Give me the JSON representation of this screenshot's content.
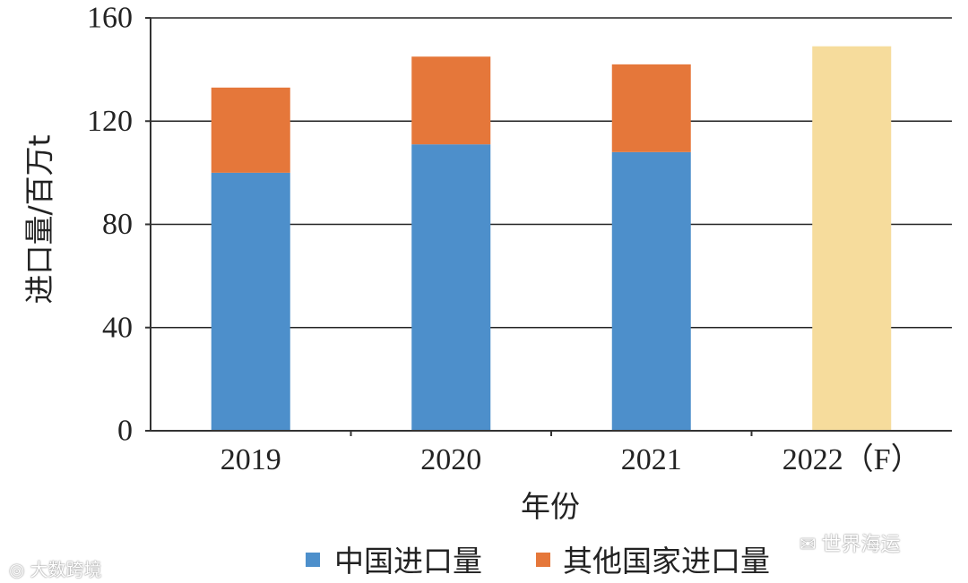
{
  "chart_data": {
    "type": "bar",
    "stacked": true,
    "categories": [
      "2019",
      "2020",
      "2021",
      "2022（F）"
    ],
    "series": [
      {
        "name": "中国进口量",
        "color": "#4d8fcb",
        "values": [
          100,
          111,
          108,
          null
        ]
      },
      {
        "name": "其他国家进口量",
        "color": "#e5773a",
        "values": [
          33,
          34,
          34,
          null
        ]
      }
    ],
    "forecast": {
      "category": "2022（F）",
      "value": 149,
      "color": "#f6dc9c"
    },
    "xlabel": "年份",
    "ylabel": "进口量/百万t",
    "ylim": [
      0,
      160
    ],
    "yticks": [
      0,
      40,
      80,
      120,
      160
    ],
    "grid": true,
    "legend_position": "bottom"
  },
  "watermarks": {
    "left": "大数跨境",
    "right": "世界海运"
  }
}
